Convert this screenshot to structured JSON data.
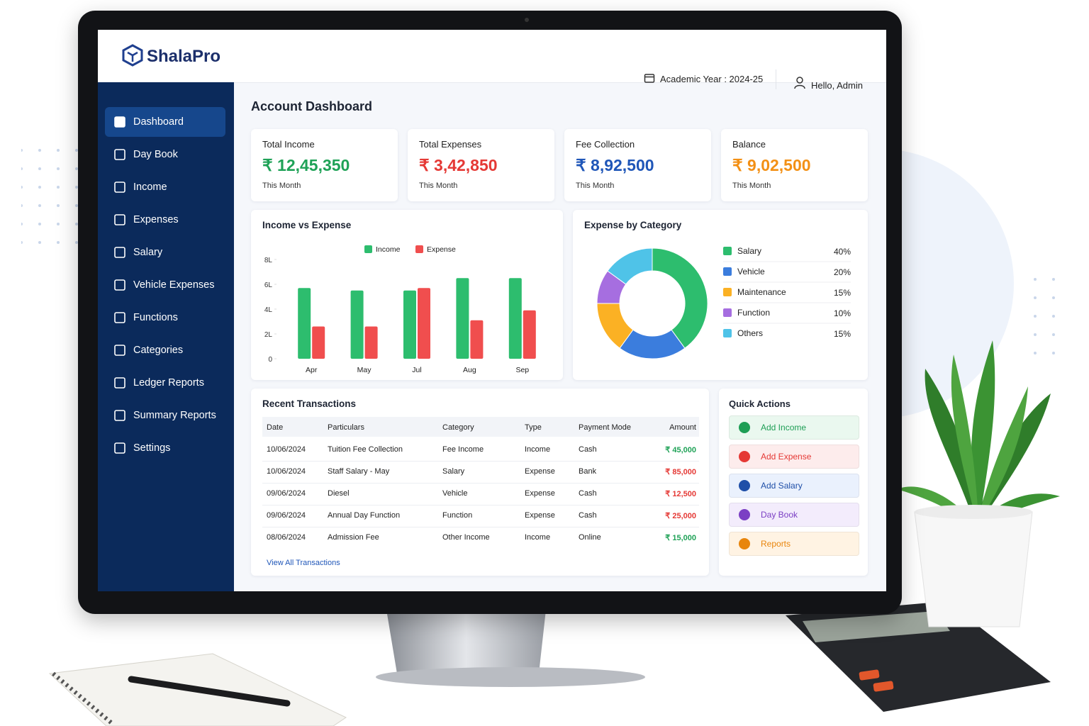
{
  "brand": "ShalaPro",
  "header": {
    "academic_year": "Academic Year : 2024-25",
    "greeting": "Hello, Admin"
  },
  "sidebar": {
    "items": [
      "Dashboard",
      "Day Book",
      "Income",
      "Expenses",
      "Salary",
      "Vehicle Expenses",
      "Functions",
      "Categories",
      "Ledger Reports",
      "Summary Reports",
      "Settings"
    ],
    "active": 0
  },
  "page_title": "Account Dashboard",
  "stats": [
    {
      "label": "Total Income",
      "value": "₹ 12,45,350",
      "note": "This Month",
      "color": "#1fa257"
    },
    {
      "label": "Total Expenses",
      "value": "₹ 3,42,850",
      "note": "This Month",
      "color": "#e53935"
    },
    {
      "label": "Fee Collection",
      "value": "₹ 8,92,500",
      "note": "This Month",
      "color": "#1f56b8"
    },
    {
      "label": "Balance",
      "value": "₹ 9,02,500",
      "note": "This Month",
      "color": "#f39015"
    }
  ],
  "income_vs_expense": {
    "type": "bar",
    "title": "Income vs Expense",
    "categories": [
      "Apr",
      "May",
      "Jul",
      "Aug",
      "Sep"
    ],
    "series": [
      {
        "name": "Income",
        "color": "#2dbd6e",
        "values": [
          5.7,
          5.5,
          5.5,
          6.5,
          6.5
        ]
      },
      {
        "name": "Expense",
        "color": "#f04e4e",
        "values": [
          2.6,
          2.6,
          5.7,
          3.1,
          3.9
        ]
      }
    ],
    "ylim": [
      0,
      8
    ],
    "yticks": [
      0,
      {
        "value": 2,
        "label": "2L"
      },
      {
        "value": 4,
        "label": "4L"
      },
      {
        "value": 6,
        "label": "6L"
      },
      {
        "value": 8,
        "label": "8L"
      }
    ]
  },
  "expense_by_category": {
    "type": "pie",
    "title": "Expense by Category",
    "categories": [
      "Salary",
      "Vehicle",
      "Maintenance",
      "Function",
      "Others"
    ],
    "values": [
      40,
      20,
      15,
      10,
      15
    ],
    "value_labels": [
      "40%",
      "20%",
      "15%",
      "10%",
      "15%"
    ],
    "colors": [
      "#2dbd6e",
      "#3b7ddd",
      "#fbb124",
      "#a66ee0",
      "#4fc3e8"
    ]
  },
  "recent_transactions": {
    "title": "Recent Transactions",
    "columns": [
      "Date",
      "Particulars",
      "Category",
      "Type",
      "Payment Mode",
      "Amount"
    ],
    "rows": [
      [
        "10/06/2024",
        "Tuition Fee Collection",
        "Fee Income",
        "Income",
        "Cash",
        "₹ 45,000"
      ],
      [
        "10/06/2024",
        "Staff Salary - May",
        "Salary",
        "Expense",
        "Bank",
        "₹ 85,000"
      ],
      [
        "09/06/2024",
        "Diesel",
        "Vehicle",
        "Expense",
        "Cash",
        "₹ 12,500"
      ],
      [
        "09/06/2024",
        "Annual Day Function",
        "Function",
        "Expense",
        "Cash",
        "₹ 25,000"
      ],
      [
        "08/06/2024",
        "Admission Fee",
        "Other Income",
        "Income",
        "Online",
        "₹ 15,000"
      ]
    ],
    "amount_colors": [
      "#1fa257",
      "#e53935",
      "#e53935",
      "#e53935",
      "#1fa257"
    ],
    "link": "View All Transactions"
  },
  "quick_actions": {
    "title": "Quick Actions",
    "items": [
      {
        "label": "Add Income",
        "color": "#1e9e55",
        "bg": "#eaf8ef"
      },
      {
        "label": "Add Expense",
        "color": "#e53935",
        "bg": "#fdecec"
      },
      {
        "label": "Add Salary",
        "color": "#1f4fa8",
        "bg": "#eaf1fd"
      },
      {
        "label": "Day Book",
        "color": "#7b3fc4",
        "bg": "#f3ecfc"
      },
      {
        "label": "Reports",
        "color": "#e8850c",
        "bg": "#fff3e3"
      }
    ]
  }
}
